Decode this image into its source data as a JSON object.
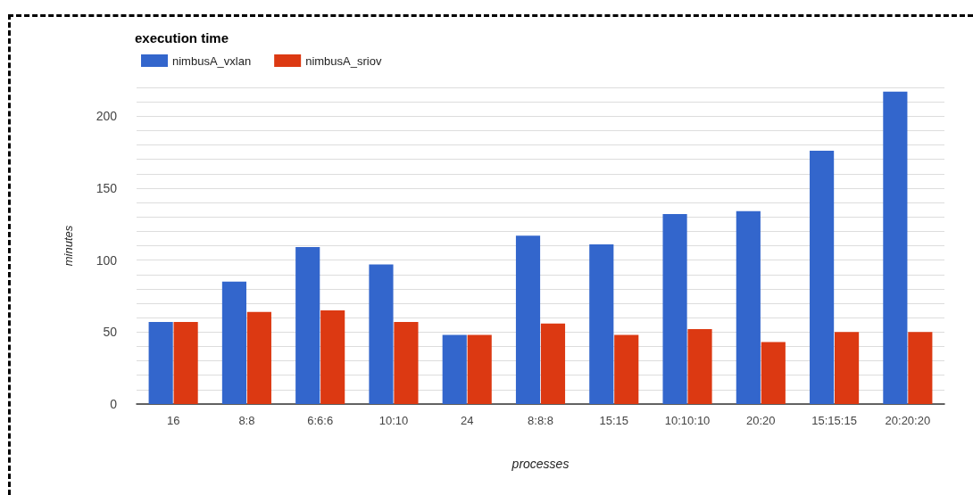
{
  "chart_data": {
    "type": "bar",
    "title": "execution time",
    "xlabel": "processes",
    "ylabel": "minutes",
    "categories": [
      "16",
      "8:8",
      "6:6:6",
      "10:10",
      "24",
      "8:8:8",
      "15:15",
      "10:10:10",
      "20:20",
      "15:15:15",
      "20:20:20"
    ],
    "series": [
      {
        "name": "nimbusA_vxlan",
        "color": "#3366cc",
        "values": [
          57,
          85,
          109,
          97,
          48,
          117,
          111,
          132,
          134,
          176,
          217
        ]
      },
      {
        "name": "nimbusA_sriov",
        "color": "#dc3912",
        "values": [
          57,
          64,
          65,
          57,
          48,
          56,
          48,
          52,
          43,
          50,
          50
        ]
      }
    ],
    "ylim": [
      0,
      220
    ],
    "yticks": [
      0,
      {
        "value": 10,
        "label": null
      },
      {
        "value": 20,
        "label": null
      },
      {
        "value": 30,
        "label": null
      },
      {
        "value": 40,
        "label": null
      },
      50,
      {
        "value": 60,
        "label": null
      },
      {
        "value": 70,
        "label": null
      },
      {
        "value": 80,
        "label": null
      },
      {
        "value": 90,
        "label": null
      },
      100,
      {
        "value": 110,
        "label": null
      },
      {
        "value": 120,
        "label": null
      },
      {
        "value": 130,
        "label": null
      },
      {
        "value": 140,
        "label": null
      },
      150,
      {
        "value": 160,
        "label": null
      },
      {
        "value": 170,
        "label": null
      },
      {
        "value": 180,
        "label": null
      },
      {
        "value": 190,
        "label": null
      },
      200,
      {
        "value": 210,
        "label": null
      },
      {
        "value": 220,
        "label": null
      }
    ],
    "grid": "y",
    "legend": "top left"
  }
}
